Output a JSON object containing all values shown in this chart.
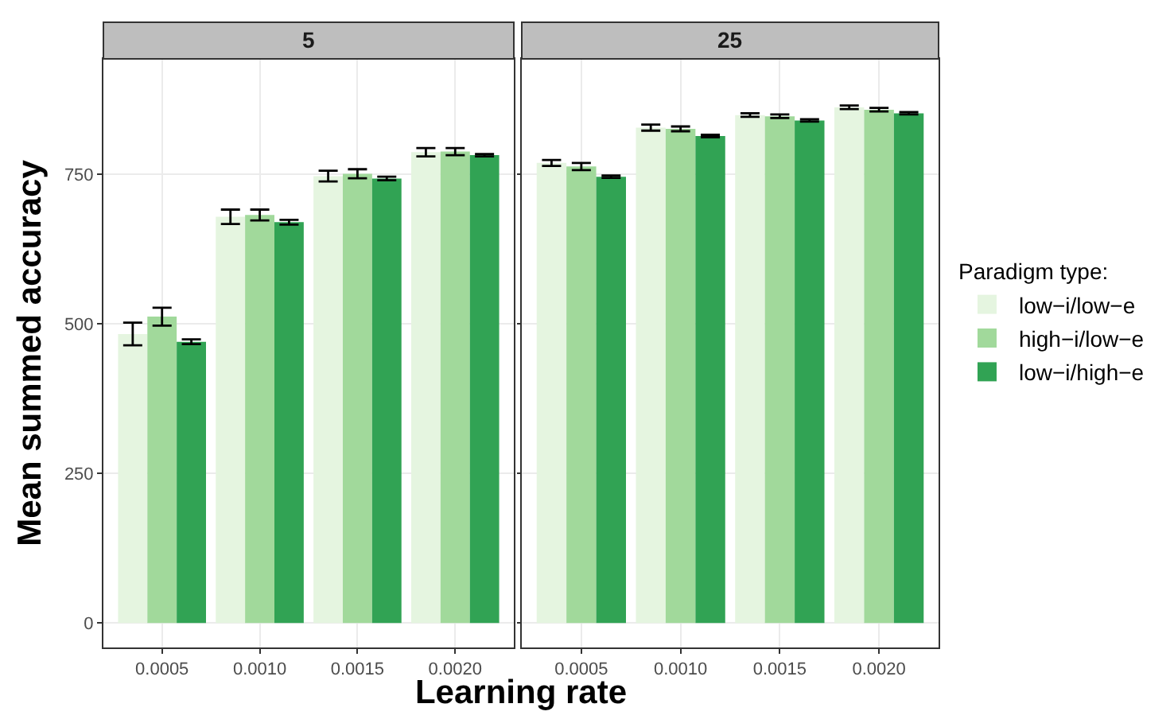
{
  "chart_data": [
    {
      "type": "bar",
      "title": "5",
      "xlabel": "Learning rate",
      "ylabel": "Mean summed accuracy",
      "categories": [
        "0.0005",
        "0.0010",
        "0.0015",
        "0.0020"
      ],
      "ylim": [
        -41,
        943
      ],
      "yticks": [
        0,
        250,
        500,
        750
      ],
      "grid": true,
      "legend": false,
      "series": [
        {
          "color": "#e5f5e0",
          "values": [
            483,
            679,
            747,
            787
          ],
          "errors": [
            19,
            12,
            9,
            7
          ]
        },
        {
          "color": "#a1d99b",
          "values": [
            512,
            682,
            751,
            788
          ],
          "errors": [
            15,
            9,
            7.5,
            6
          ]
        },
        {
          "color": "#31a354",
          "values": [
            470,
            670,
            743,
            782
          ],
          "errors": [
            4,
            4,
            3,
            2
          ]
        }
      ]
    },
    {
      "type": "bar",
      "title": "25",
      "legend_title": "Paradigm type:",
      "categories": [
        "0.0005",
        "0.0010",
        "0.0015",
        "0.0020"
      ],
      "ylim": [
        -41,
        943
      ],
      "yticks": [
        0,
        250,
        500,
        750
      ],
      "grid": true,
      "legend": "right",
      "tick_labels": "x",
      "series": [
        {
          "name": "low−i/low−e",
          "color": "#e5f5e0",
          "values": [
            769,
            828,
            849,
            862
          ],
          "errors": [
            5,
            5,
            3,
            3
          ]
        },
        {
          "name": "high−i/low−e",
          "color": "#a1d99b",
          "values": [
            763,
            826,
            847,
            858
          ],
          "errors": [
            6,
            4,
            3,
            3
          ]
        },
        {
          "name": "low−i/high−e",
          "color": "#31a354",
          "values": [
            746,
            814,
            840,
            852
          ],
          "errors": [
            2,
            2,
            2,
            2
          ]
        }
      ]
    }
  ]
}
